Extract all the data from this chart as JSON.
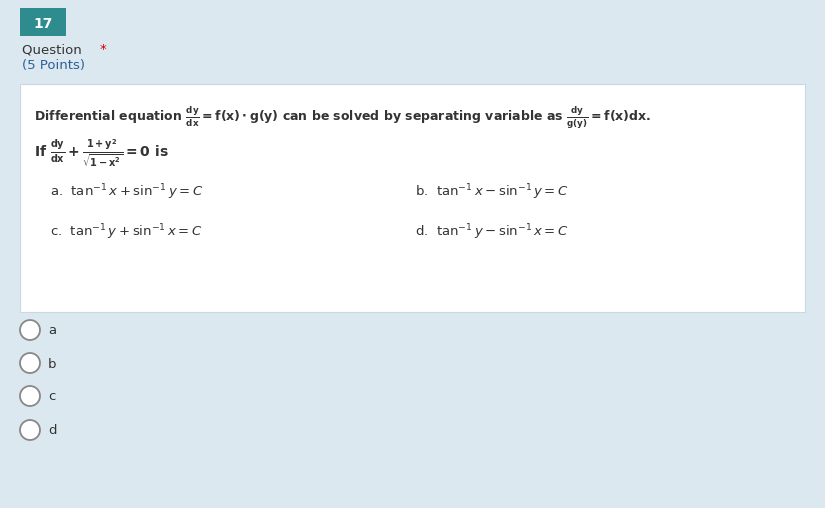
{
  "question_number": "17",
  "question_label": "Question *",
  "question_star_color": "#cc0000",
  "points_label": "(5 Points)",
  "bg_color_outer": "#dce8f0",
  "bg_color_inner": "#ffffff",
  "header_bg": "#2e8b8e",
  "header_text_color": "#ffffff",
  "question_text_color": "#333333",
  "points_text_color": "#2a6099",
  "answer_options": [
    "a",
    "b",
    "c",
    "d"
  ],
  "fig_width": 8.25,
  "fig_height": 5.08,
  "dpi": 100
}
